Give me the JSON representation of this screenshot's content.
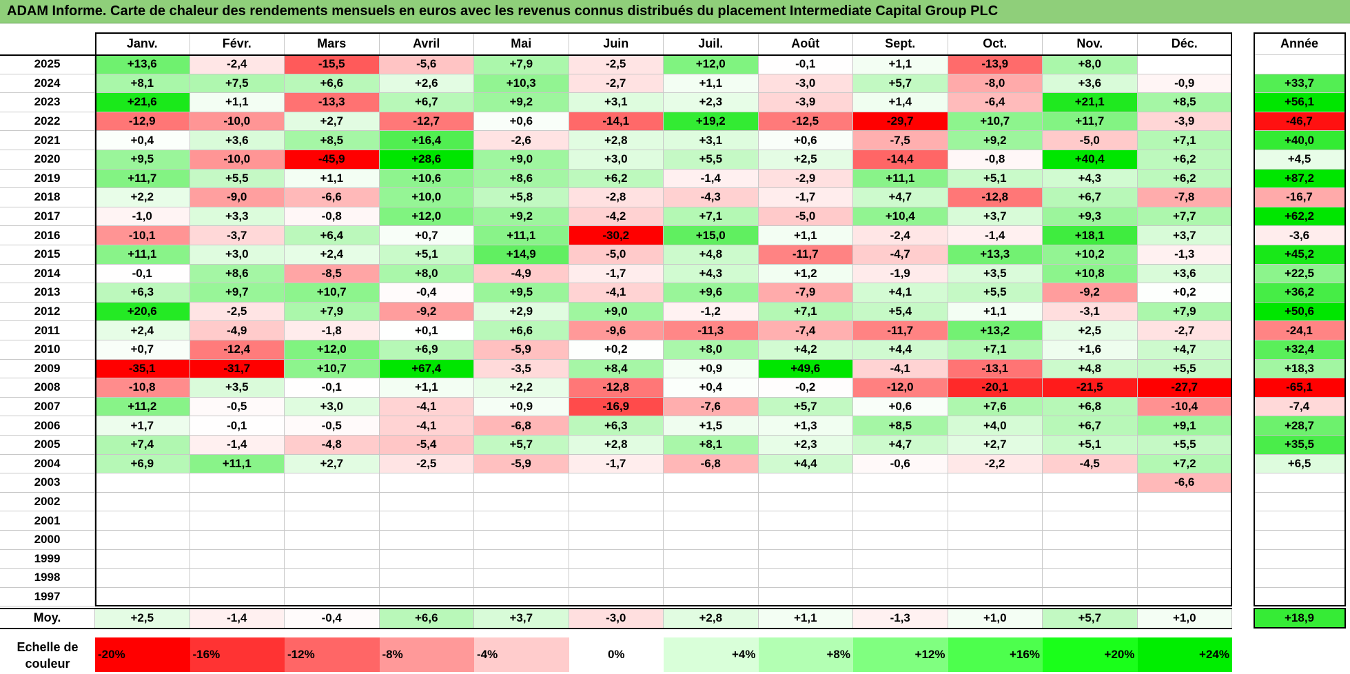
{
  "title": "ADAM Informe. Carte de chaleur des rendements mensuels en euros avec les revenus connus distribués du placement Intermediate Capital Group PLC",
  "chart_data": {
    "type": "heatmap",
    "months": [
      "Janv.",
      "Févr.",
      "Mars",
      "Avril",
      "Mai",
      "Juin",
      "Juil.",
      "Août",
      "Sept.",
      "Oct.",
      "Nov.",
      "Déc."
    ],
    "year_header": "Année",
    "avg_label": "Moy.",
    "rows": [
      {
        "year": "2025",
        "values": [
          "+13,6",
          "-2,4",
          "-15,5",
          "-5,6",
          "+7,9",
          "-2,5",
          "+12,0",
          "-0,1",
          "+1,1",
          "-13,9",
          "+8,0",
          ""
        ],
        "annual": ""
      },
      {
        "year": "2024",
        "values": [
          "+8,1",
          "+7,5",
          "+6,6",
          "+2,6",
          "+10,3",
          "-2,7",
          "+1,1",
          "-3,0",
          "+5,7",
          "-8,0",
          "+3,6",
          "-0,9"
        ],
        "annual": "+33,7"
      },
      {
        "year": "2023",
        "values": [
          "+21,6",
          "+1,1",
          "-13,3",
          "+6,7",
          "+9,2",
          "+3,1",
          "+2,3",
          "-3,9",
          "+1,4",
          "-6,4",
          "+21,1",
          "+8,5"
        ],
        "annual": "+56,1"
      },
      {
        "year": "2022",
        "values": [
          "-12,9",
          "-10,0",
          "+2,7",
          "-12,7",
          "+0,6",
          "-14,1",
          "+19,2",
          "-12,5",
          "-29,7",
          "+10,7",
          "+11,7",
          "-3,9"
        ],
        "annual": "-46,7"
      },
      {
        "year": "2021",
        "values": [
          "+0,4",
          "+3,6",
          "+8,5",
          "+16,4",
          "-2,6",
          "+2,8",
          "+3,1",
          "+0,6",
          "-7,5",
          "+9,2",
          "-5,0",
          "+7,1"
        ],
        "annual": "+40,0"
      },
      {
        "year": "2020",
        "values": [
          "+9,5",
          "-10,0",
          "-45,9",
          "+28,6",
          "+9,0",
          "+3,0",
          "+5,5",
          "+2,5",
          "-14,4",
          "-0,8",
          "+40,4",
          "+6,2"
        ],
        "annual": "+4,5"
      },
      {
        "year": "2019",
        "values": [
          "+11,7",
          "+5,5",
          "+1,1",
          "+10,6",
          "+8,6",
          "+6,2",
          "-1,4",
          "-2,9",
          "+11,1",
          "+5,1",
          "+4,3",
          "+6,2"
        ],
        "annual": "+87,2"
      },
      {
        "year": "2018",
        "values": [
          "+2,2",
          "-9,0",
          "-6,6",
          "+10,0",
          "+5,8",
          "-2,8",
          "-4,3",
          "-1,7",
          "+4,7",
          "-12,8",
          "+6,7",
          "-7,8"
        ],
        "annual": "-16,7"
      },
      {
        "year": "2017",
        "values": [
          "-1,0",
          "+3,3",
          "-0,8",
          "+12,0",
          "+9,2",
          "-4,2",
          "+7,1",
          "-5,0",
          "+10,4",
          "+3,7",
          "+9,3",
          "+7,7"
        ],
        "annual": "+62,2"
      },
      {
        "year": "2016",
        "values": [
          "-10,1",
          "-3,7",
          "+6,4",
          "+0,7",
          "+11,1",
          "-30,2",
          "+15,0",
          "+1,1",
          "-2,4",
          "-1,4",
          "+18,1",
          "+3,7"
        ],
        "annual": "-3,6"
      },
      {
        "year": "2015",
        "values": [
          "+11,1",
          "+3,0",
          "+2,4",
          "+5,1",
          "+14,9",
          "-5,0",
          "+4,8",
          "-11,7",
          "-4,7",
          "+13,3",
          "+10,2",
          "-1,3"
        ],
        "annual": "+45,2"
      },
      {
        "year": "2014",
        "values": [
          "-0,1",
          "+8,6",
          "-8,5",
          "+8,0",
          "-4,9",
          "-1,7",
          "+4,3",
          "+1,2",
          "-1,9",
          "+3,5",
          "+10,8",
          "+3,6"
        ],
        "annual": "+22,5"
      },
      {
        "year": "2013",
        "values": [
          "+6,3",
          "+9,7",
          "+10,7",
          "-0,4",
          "+9,5",
          "-4,1",
          "+9,6",
          "-7,9",
          "+4,1",
          "+5,5",
          "-9,2",
          "+0,2"
        ],
        "annual": "+36,2"
      },
      {
        "year": "2012",
        "values": [
          "+20,6",
          "-2,5",
          "+7,9",
          "-9,2",
          "+2,9",
          "+9,0",
          "-1,2",
          "+7,1",
          "+5,4",
          "+1,1",
          "-3,1",
          "+7,9"
        ],
        "annual": "+50,6"
      },
      {
        "year": "2011",
        "values": [
          "+2,4",
          "-4,9",
          "-1,8",
          "+0,1",
          "+6,6",
          "-9,6",
          "-11,3",
          "-7,4",
          "-11,7",
          "+13,2",
          "+2,5",
          "-2,7"
        ],
        "annual": "-24,1"
      },
      {
        "year": "2010",
        "values": [
          "+0,7",
          "-12,4",
          "+12,0",
          "+6,9",
          "-5,9",
          "+0,2",
          "+8,0",
          "+4,2",
          "+4,4",
          "+7,1",
          "+1,6",
          "+4,7"
        ],
        "annual": "+32,4"
      },
      {
        "year": "2009",
        "values": [
          "-35,1",
          "-31,7",
          "+10,7",
          "+67,4",
          "-3,5",
          "+8,4",
          "+0,9",
          "+49,6",
          "-4,1",
          "-13,1",
          "+4,8",
          "+5,5"
        ],
        "annual": "+18,3"
      },
      {
        "year": "2008",
        "values": [
          "-10,8",
          "+3,5",
          "-0,1",
          "+1,1",
          "+2,2",
          "-12,8",
          "+0,4",
          "-0,2",
          "-12,0",
          "-20,1",
          "-21,5",
          "-27,7"
        ],
        "annual": "-65,1"
      },
      {
        "year": "2007",
        "values": [
          "+11,2",
          "-0,5",
          "+3,0",
          "-4,1",
          "+0,9",
          "-16,9",
          "-7,6",
          "+5,7",
          "+0,6",
          "+7,6",
          "+6,8",
          "-10,4"
        ],
        "annual": "-7,4"
      },
      {
        "year": "2006",
        "values": [
          "+1,7",
          "-0,1",
          "-0,5",
          "-4,1",
          "-6,8",
          "+6,3",
          "+1,5",
          "+1,3",
          "+8,5",
          "+4,0",
          "+6,7",
          "+9,1"
        ],
        "annual": "+28,7"
      },
      {
        "year": "2005",
        "values": [
          "+7,4",
          "-1,4",
          "-4,8",
          "-5,4",
          "+5,7",
          "+2,8",
          "+8,1",
          "+2,3",
          "+4,7",
          "+2,7",
          "+5,1",
          "+5,5"
        ],
        "annual": "+35,5"
      },
      {
        "year": "2004",
        "values": [
          "+6,9",
          "+11,1",
          "+2,7",
          "-2,5",
          "-5,9",
          "-1,7",
          "-6,8",
          "+4,4",
          "-0,6",
          "-2,2",
          "-4,5",
          "+7,2"
        ],
        "annual": "+6,5"
      },
      {
        "year": "2003",
        "values": [
          "",
          "",
          "",
          "",
          "",
          "",
          "",
          "",
          "",
          "",
          "",
          "-6,6"
        ],
        "annual": ""
      },
      {
        "year": "2002",
        "values": [
          "",
          "",
          "",
          "",
          "",
          "",
          "",
          "",
          "",
          "",
          "",
          ""
        ],
        "annual": ""
      },
      {
        "year": "2001",
        "values": [
          "",
          "",
          "",
          "",
          "",
          "",
          "",
          "",
          "",
          "",
          "",
          ""
        ],
        "annual": ""
      },
      {
        "year": "2000",
        "values": [
          "",
          "",
          "",
          "",
          "",
          "",
          "",
          "",
          "",
          "",
          "",
          ""
        ],
        "annual": ""
      },
      {
        "year": "1999",
        "values": [
          "",
          "",
          "",
          "",
          "",
          "",
          "",
          "",
          "",
          "",
          "",
          ""
        ],
        "annual": ""
      },
      {
        "year": "1998",
        "values": [
          "",
          "",
          "",
          "",
          "",
          "",
          "",
          "",
          "",
          "",
          "",
          ""
        ],
        "annual": ""
      },
      {
        "year": "1997",
        "values": [
          "",
          "",
          "",
          "",
          "",
          "",
          "",
          "",
          "",
          "",
          "",
          ""
        ],
        "annual": ""
      }
    ],
    "averages": [
      "+2,5",
      "-1,4",
      "-0,4",
      "+6,6",
      "+3,7",
      "-3,0",
      "+2,8",
      "+1,1",
      "-1,3",
      "+1,0",
      "+5,7",
      "+1,0"
    ],
    "annual_average": "+18,9",
    "color_scale": {
      "label": "Echelle de couleur",
      "labels": [
        "-20%",
        "-16%",
        "-12%",
        "-8%",
        "-4%",
        "0%",
        "+4%",
        "+8%",
        "+12%",
        "+16%",
        "+20%",
        "+24%"
      ],
      "colors": [
        "#ff0000",
        "#ff3333",
        "#ff6666",
        "#ff9999",
        "#ffcccc",
        "#ffffff",
        "#d9ffd9",
        "#b3ffb3",
        "#80ff80",
        "#4dff4d",
        "#1aff1a",
        "#00ee00"
      ]
    }
  }
}
